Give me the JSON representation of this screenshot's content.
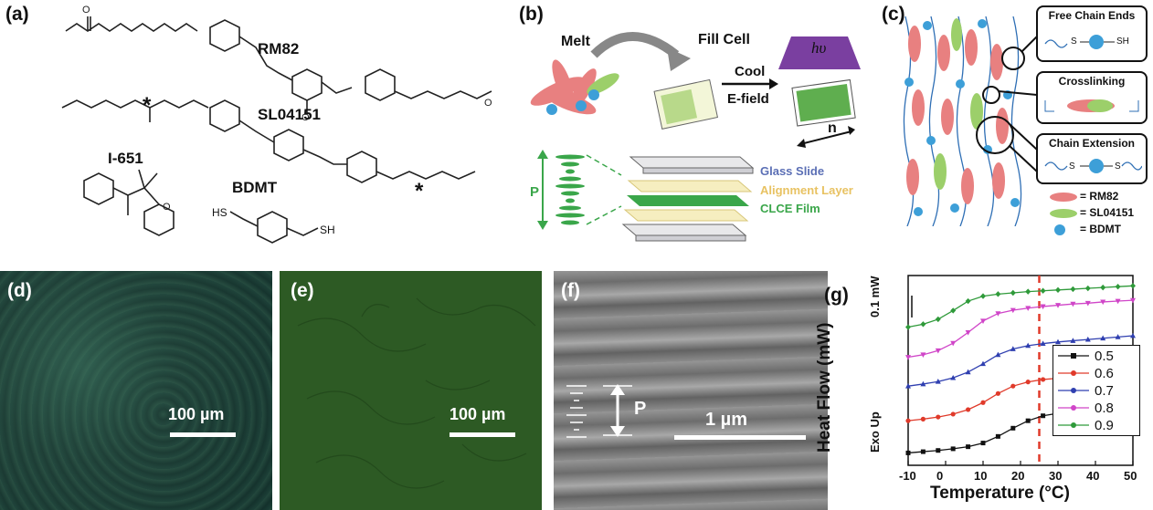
{
  "panels": {
    "a": {
      "label": "(a)"
    },
    "b": {
      "label": "(b)"
    },
    "c": {
      "label": "(c)"
    },
    "d": {
      "label": "(d)"
    },
    "e": {
      "label": "(e)"
    },
    "f": {
      "label": "(f)"
    },
    "g": {
      "label": "(g)"
    }
  },
  "chem": {
    "rm82": "RM82",
    "sl": "SL04151",
    "i651": "I-651",
    "bdmt": "BDMT",
    "hs": "HS",
    "sh": "SH",
    "o": "O",
    "star": "*"
  },
  "process": {
    "melt": "Melt",
    "fill": "Fill Cell",
    "cool": "Cool",
    "efield": "E-field",
    "hv": "hυ",
    "n": "n",
    "p": "P",
    "glass": "Glass Slide",
    "align": "Alignment Layer",
    "clce": "CLCE Film",
    "glass_color": "#5b6fb5",
    "align_color": "#f2d690",
    "clce_color": "#3aa64a"
  },
  "network": {
    "free": "Free Chain Ends",
    "cross": "Crosslinking",
    "chain": "Chain Extension",
    "s": "S",
    "sh": "SH",
    "legend": [
      "= RM82",
      "= SL04151",
      "= BDMT"
    ],
    "colors": {
      "rm82": "#e88080",
      "sl": "#9ccf6a",
      "bdmt": "#3d9fd8"
    }
  },
  "micrographs": {
    "d_scale": "100 µm",
    "e_scale": "100 µm",
    "f_scale": "1 µm",
    "f_p": "P"
  },
  "chart_data": {
    "type": "line",
    "xlabel": "Temperature (°C)",
    "ylabel": "Heat Flow (mW)",
    "exo": "Exo Up",
    "scale_label": "0.1 mW",
    "xlim": [
      -10,
      50
    ],
    "xticks": [
      "-10",
      "0",
      "10",
      "20",
      "30",
      "40",
      "50"
    ],
    "marker_x": 25,
    "series": [
      {
        "name": "0.5",
        "color": "#111111",
        "marker": "square",
        "x": [
          -10,
          -6,
          -2,
          2,
          6,
          10,
          14,
          18,
          22,
          26,
          30,
          34,
          38,
          42,
          46,
          50
        ],
        "y": [
          0.0,
          0.03,
          0.06,
          0.1,
          0.15,
          0.24,
          0.4,
          0.6,
          0.78,
          0.9,
          0.96,
          0.99,
          1.01,
          1.03,
          1.05,
          1.07
        ]
      },
      {
        "name": "0.6",
        "color": "#e03a2a",
        "marker": "circle",
        "x": [
          -10,
          -6,
          -2,
          2,
          6,
          10,
          14,
          18,
          22,
          26,
          30,
          34,
          38,
          42,
          46,
          50
        ],
        "y": [
          0.78,
          0.82,
          0.87,
          0.94,
          1.05,
          1.22,
          1.44,
          1.62,
          1.72,
          1.78,
          1.81,
          1.84,
          1.86,
          1.88,
          1.9,
          1.92
        ]
      },
      {
        "name": "0.7",
        "color": "#2f3fb0",
        "marker": "triangle",
        "x": [
          -10,
          -6,
          -2,
          2,
          6,
          10,
          14,
          18,
          22,
          26,
          30,
          34,
          38,
          42,
          46,
          50
        ],
        "y": [
          1.62,
          1.67,
          1.73,
          1.82,
          1.96,
          2.16,
          2.38,
          2.52,
          2.6,
          2.65,
          2.69,
          2.72,
          2.75,
          2.78,
          2.81,
          2.84
        ]
      },
      {
        "name": "0.8",
        "color": "#d045c8",
        "marker": "triangle-down",
        "x": [
          -10,
          -6,
          -2,
          2,
          6,
          10,
          14,
          18,
          22,
          26,
          30,
          34,
          38,
          42,
          46,
          50
        ],
        "y": [
          2.32,
          2.38,
          2.48,
          2.66,
          2.92,
          3.2,
          3.38,
          3.46,
          3.51,
          3.55,
          3.58,
          3.61,
          3.63,
          3.66,
          3.68,
          3.7
        ]
      },
      {
        "name": "0.9",
        "color": "#2f9a3a",
        "marker": "diamond",
        "x": [
          -10,
          -6,
          -2,
          2,
          6,
          10,
          14,
          18,
          22,
          26,
          30,
          34,
          38,
          42,
          46,
          50
        ],
        "y": [
          3.05,
          3.12,
          3.24,
          3.45,
          3.68,
          3.8,
          3.85,
          3.88,
          3.91,
          3.93,
          3.95,
          3.97,
          3.99,
          4.01,
          4.03,
          4.05
        ]
      }
    ]
  }
}
